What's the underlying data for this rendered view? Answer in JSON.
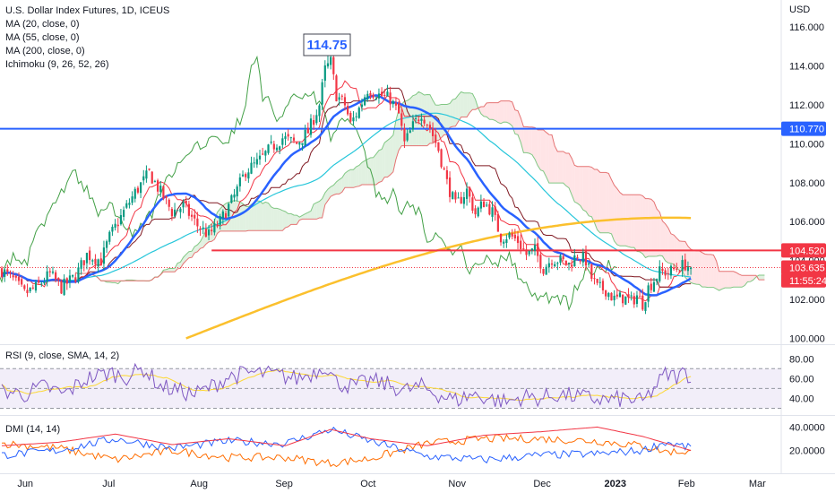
{
  "main_legend": {
    "symbol_line": "U.S. Dollar Index Futures, 1D, ICEUS",
    "indicators": [
      "MA (20, close, 0)",
      "MA (55, close, 0)",
      "MA (200, close, 0)",
      "Ichimoku (9, 26, 52, 26)"
    ]
  },
  "callout": {
    "text": "114.75",
    "color": "#2962ff"
  },
  "price_scale": {
    "currency": "USD",
    "ticks": [
      "116.000",
      "114.000",
      "112.000",
      "110.000",
      "108.000",
      "106.000",
      "104.000",
      "102.000",
      "100.000"
    ]
  },
  "price_labels": [
    {
      "text": "110.770",
      "value": 110.77,
      "bg": "#2962ff",
      "fg": "#ffffff"
    },
    {
      "text": "104.520",
      "value": 104.52,
      "bg": "#f23645",
      "fg": "#ffffff"
    },
    {
      "text": "103.635",
      "value": 103.635,
      "bg": "#f23645",
      "fg": "#ffffff"
    },
    {
      "text": "11:55:24",
      "value": 102.98,
      "bg": "#f23645",
      "fg": "#ffffff"
    }
  ],
  "colors": {
    "up": "#089981",
    "down": "#f23645",
    "ma20": "#2962ff",
    "ma55": "#26c6da",
    "ma200": "#fbc02d",
    "hline_blue": "#2962ff",
    "hline_red": "#f23645",
    "kumo_bull": "#c8e6c9",
    "kumo_bear": "#ffcdd2",
    "tenkan": "#f23645",
    "kijun": "#801922",
    "chikou": "#43a047",
    "span_a": "#81c784",
    "span_b": "#e57373",
    "rsi": "#7e57c2",
    "rsi_ma": "#fdd835",
    "rsi_band": "#ede7f6",
    "plus_di": "#2962ff",
    "minus_di": "#ff6d00",
    "adx": "#f23645"
  },
  "rsi_panel": {
    "legend": "RSI (9, close, SMA, 14, 2)",
    "ticks": [
      "80.00",
      "60.00",
      "40.00"
    ]
  },
  "dmi_panel": {
    "legend": "DMI (14, 14)",
    "ticks": [
      "40.0000",
      "20.0000"
    ]
  },
  "date_ticks": [
    "Jun",
    "Jul",
    "Aug",
    "Sep",
    "Oct",
    "Nov",
    "Dec",
    "2023",
    "Feb",
    "Mar"
  ],
  "chart_data": {
    "type": "candlestick",
    "y_range": [
      99.7,
      117.2
    ],
    "horizontal_lines": [
      110.77,
      104.52
    ],
    "current_price": 103.635,
    "annotated_high": 114.75,
    "price_anchors": [
      [
        0,
        103.5
      ],
      [
        4,
        103.0
      ],
      [
        8,
        102.3
      ],
      [
        12,
        102.6
      ],
      [
        17,
        103.3
      ],
      [
        21,
        102.6
      ],
      [
        26,
        103.2
      ],
      [
        30,
        104.3
      ],
      [
        35,
        104.0
      ],
      [
        38,
        105.2
      ],
      [
        43,
        106.5
      ],
      [
        47,
        107.5
      ],
      [
        52,
        108.5
      ],
      [
        56,
        107.5
      ],
      [
        60,
        106.5
      ],
      [
        64,
        106.8
      ],
      [
        69,
        105.8
      ],
      [
        73,
        105.3
      ],
      [
        77,
        106.0
      ],
      [
        82,
        107.3
      ],
      [
        86,
        108.6
      ],
      [
        90,
        109.0
      ],
      [
        95,
        109.8
      ],
      [
        99,
        110.3
      ],
      [
        104,
        110.0
      ],
      [
        108,
        110.6
      ],
      [
        112,
        112.0
      ],
      [
        114,
        113.8
      ],
      [
        116,
        114.2
      ],
      [
        118,
        112.5
      ],
      [
        121,
        112.0
      ],
      [
        123,
        111.0
      ],
      [
        126,
        111.8
      ],
      [
        129,
        112.8
      ],
      [
        133,
        112.5
      ],
      [
        137,
        112.3
      ],
      [
        140,
        111.5
      ],
      [
        142,
        110.0
      ],
      [
        145,
        110.9
      ],
      [
        148,
        111.6
      ],
      [
        151,
        110.8
      ],
      [
        154,
        109.7
      ],
      [
        157,
        108.0
      ],
      [
        160,
        106.8
      ],
      [
        164,
        107.6
      ],
      [
        167,
        106.4
      ],
      [
        170,
        107.0
      ],
      [
        173,
        106.5
      ],
      [
        176,
        105.2
      ],
      [
        179,
        105.3
      ],
      [
        182,
        105.0
      ],
      [
        185,
        104.3
      ],
      [
        188,
        104.5
      ],
      [
        191,
        103.6
      ],
      [
        194,
        104.1
      ],
      [
        197,
        104.0
      ],
      [
        200,
        103.8
      ],
      [
        203,
        104.3
      ],
      [
        206,
        104.0
      ],
      [
        208,
        103.1
      ],
      [
        210,
        102.6
      ],
      [
        213,
        102.5
      ],
      [
        216,
        102.0
      ],
      [
        219,
        102.1
      ],
      [
        222,
        101.9
      ],
      [
        224,
        102.2
      ],
      [
        226,
        101.8
      ],
      [
        228,
        102.6
      ],
      [
        230,
        103.0
      ],
      [
        232,
        103.4
      ],
      [
        235,
        103.4
      ],
      [
        238,
        103.6
      ],
      [
        241,
        103.8
      ],
      [
        243,
        103.63
      ]
    ],
    "rsi_anchors": [
      [
        0,
        48
      ],
      [
        8,
        44
      ],
      [
        15,
        52
      ],
      [
        22,
        44
      ],
      [
        30,
        60
      ],
      [
        38,
        66
      ],
      [
        44,
        62
      ],
      [
        50,
        70
      ],
      [
        56,
        52
      ],
      [
        62,
        48
      ],
      [
        68,
        44
      ],
      [
        74,
        52
      ],
      [
        80,
        62
      ],
      [
        88,
        66
      ],
      [
        96,
        64
      ],
      [
        104,
        60
      ],
      [
        110,
        66
      ],
      [
        114,
        74
      ],
      [
        118,
        56
      ],
      [
        124,
        52
      ],
      [
        130,
        58
      ],
      [
        136,
        54
      ],
      [
        142,
        48
      ],
      [
        148,
        52
      ],
      [
        154,
        44
      ],
      [
        160,
        38
      ],
      [
        166,
        44
      ],
      [
        172,
        40
      ],
      [
        178,
        36
      ],
      [
        184,
        42
      ],
      [
        190,
        40
      ],
      [
        196,
        44
      ],
      [
        202,
        42
      ],
      [
        208,
        40
      ],
      [
        214,
        38
      ],
      [
        220,
        40
      ],
      [
        226,
        36
      ],
      [
        230,
        50
      ],
      [
        234,
        64
      ],
      [
        238,
        62
      ],
      [
        241,
        66
      ],
      [
        243,
        63
      ]
    ],
    "dmi_anchors": {
      "adx": [
        [
          0,
          24
        ],
        [
          20,
          27
        ],
        [
          40,
          34
        ],
        [
          60,
          25
        ],
        [
          80,
          30
        ],
        [
          100,
          24
        ],
        [
          116,
          38
        ],
        [
          130,
          30
        ],
        [
          150,
          24
        ],
        [
          170,
          33
        ],
        [
          190,
          36
        ],
        [
          210,
          40
        ],
        [
          226,
          32
        ],
        [
          243,
          20
        ]
      ],
      "plus_di": [
        [
          0,
          16
        ],
        [
          20,
          20
        ],
        [
          40,
          30
        ],
        [
          60,
          22
        ],
        [
          80,
          28
        ],
        [
          100,
          26
        ],
        [
          116,
          38
        ],
        [
          130,
          28
        ],
        [
          150,
          15
        ],
        [
          170,
          12
        ],
        [
          190,
          16
        ],
        [
          210,
          17
        ],
        [
          226,
          20
        ],
        [
          234,
          27
        ],
        [
          243,
          22
        ]
      ],
      "minus_di": [
        [
          0,
          26
        ],
        [
          20,
          22
        ],
        [
          40,
          12
        ],
        [
          60,
          20
        ],
        [
          80,
          14
        ],
        [
          100,
          14
        ],
        [
          116,
          9
        ],
        [
          130,
          13
        ],
        [
          150,
          26
        ],
        [
          170,
          30
        ],
        [
          190,
          30
        ],
        [
          210,
          28
        ],
        [
          226,
          24
        ],
        [
          234,
          19
        ],
        [
          243,
          19
        ]
      ]
    }
  }
}
